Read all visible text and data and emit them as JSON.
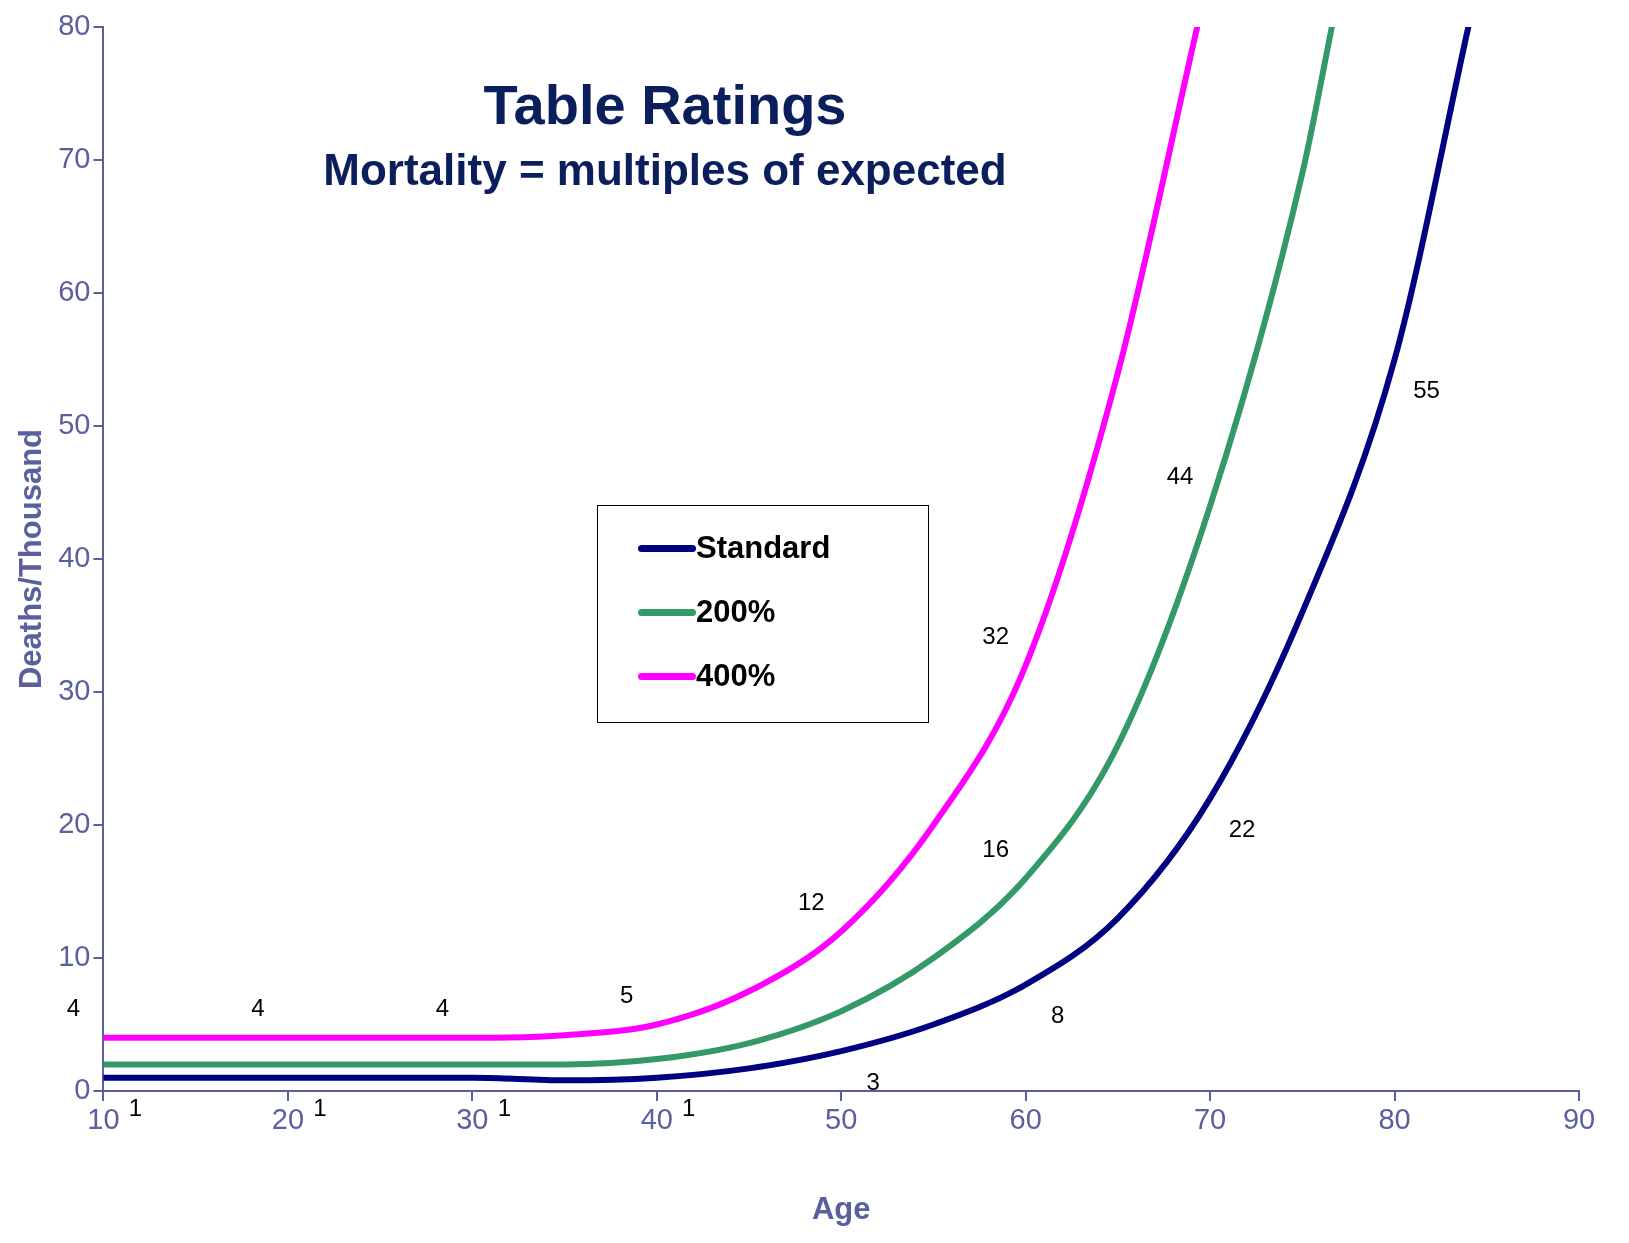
{
  "chart_data": {
    "type": "line",
    "title": "Table Ratings",
    "subtitle": "Mortality = multiples of expected",
    "xlabel": "Age",
    "ylabel": "Deaths/Thousand",
    "xlim": [
      10,
      90
    ],
    "xticks": [
      10,
      20,
      30,
      40,
      50,
      60,
      70,
      80,
      90
    ],
    "ylim": [
      0,
      80
    ],
    "yticks": [
      0,
      10,
      20,
      30,
      40,
      50,
      60,
      70,
      80
    ],
    "grid": false,
    "legend": "center",
    "marker": "none",
    "line_style": "solid",
    "series": [
      {
        "name": "Standard",
        "color": "#000080",
        "x": [
          10,
          20,
          30,
          35,
          40,
          45,
          50,
          55,
          60,
          65,
          70,
          75,
          80,
          84
        ],
        "values": [
          1,
          1,
          1,
          0.8,
          1,
          1.7,
          3,
          5,
          8,
          13,
          22,
          36,
          55,
          80
        ],
        "value_labels": [
          "1",
          "1",
          "1",
          null,
          "1",
          null,
          "3",
          null,
          "8",
          null,
          "22",
          null,
          "55",
          null
        ]
      },
      {
        "name": "200%",
        "color": "#339966",
        "x": [
          10,
          20,
          30,
          35,
          40,
          45,
          50,
          55,
          60,
          65,
          70,
          75,
          76.6
        ],
        "values": [
          2,
          2,
          2,
          2,
          2.4,
          3.6,
          6,
          10,
          16,
          26,
          44,
          69,
          80
        ],
        "value_labels": [
          null,
          null,
          null,
          null,
          null,
          null,
          null,
          null,
          "16",
          null,
          "44",
          null,
          null
        ]
      },
      {
        "name": "400%",
        "color": "#ff00ff",
        "x": [
          10,
          20,
          30,
          35,
          40,
          45,
          50,
          55,
          60,
          65,
          69.3
        ],
        "values": [
          4,
          4,
          4,
          4.2,
          5,
          7.5,
          12,
          20,
          32,
          54,
          80
        ],
        "value_labels": [
          "4",
          "4",
          "4",
          null,
          "5",
          null,
          "12",
          null,
          "32",
          null,
          null
        ]
      }
    ]
  }
}
